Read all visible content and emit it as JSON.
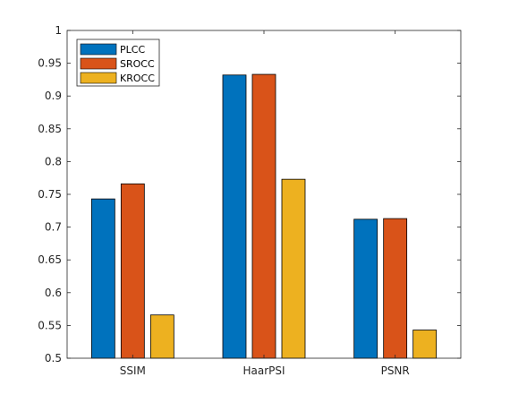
{
  "chart_data": {
    "type": "bar",
    "categories": [
      "SSIM",
      "HaarPSI",
      "PSNR"
    ],
    "series": [
      {
        "name": "PLCC",
        "color": "#0072BD",
        "values": [
          0.743,
          0.932,
          0.712
        ]
      },
      {
        "name": "SROCC",
        "color": "#D95319",
        "values": [
          0.766,
          0.933,
          0.713
        ]
      },
      {
        "name": "KROCC",
        "color": "#EDB120",
        "values": [
          0.566,
          0.773,
          0.543
        ]
      }
    ],
    "ylim": [
      0.5,
      1
    ],
    "yticks": [
      "0.5",
      "0.55",
      "0.6",
      "0.65",
      "0.7",
      "0.75",
      "0.8",
      "0.85",
      "0.9",
      "0.95",
      "1"
    ],
    "grid": false,
    "legend_position": "top-left"
  }
}
